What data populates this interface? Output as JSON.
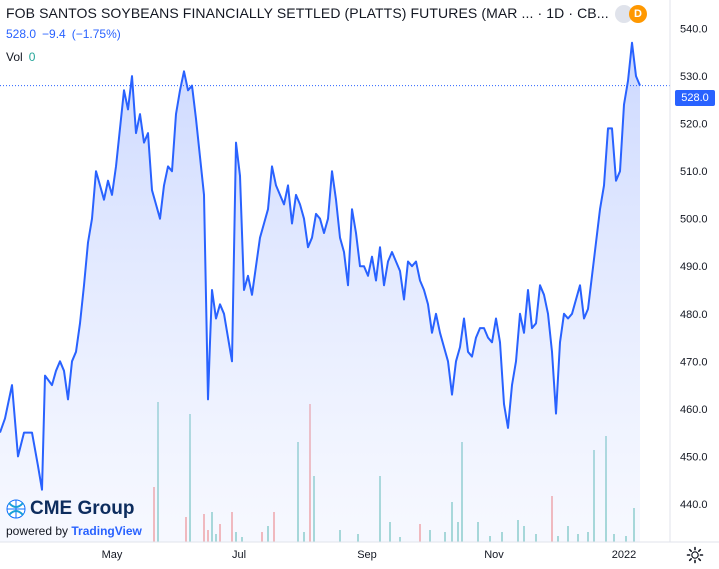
{
  "header": {
    "symbol_title": "FOB SANTOS SOYBEANS FINANCIALLY SETTLED (PLATTS) FUTURES (MAR ...",
    "interval": "1D",
    "exchange": "CB...",
    "badge_letter": "D"
  },
  "quote": {
    "last": "528.0",
    "change": "−9.4",
    "change_pct": "(−1.75%)"
  },
  "volume": {
    "label": "Vol",
    "value": "0"
  },
  "price_tag": "528.0",
  "branding": {
    "logo_text": "CME Group",
    "powered_by": "powered by",
    "provider": "TradingView"
  },
  "colors": {
    "line": "#2962ff",
    "area": "#dbe4ff",
    "vol_up": "#26a69a",
    "vol_down": "#ef5350"
  },
  "chart_data": {
    "type": "area",
    "x_tick_labels": [
      "May",
      "Jul",
      "Sep",
      "Nov",
      "2022"
    ],
    "y_tick_labels": [
      "440.0",
      "450.0",
      "460.0",
      "470.0",
      "480.0",
      "490.0",
      "500.0",
      "510.0",
      "520.0",
      "530.0",
      "540.0"
    ],
    "ylim": [
      432,
      546
    ],
    "last_price": 528.0,
    "price_x_range": [
      0,
      640
    ],
    "price_series": [
      [
        0,
        455
      ],
      [
        5,
        458
      ],
      [
        12,
        465
      ],
      [
        18,
        450
      ],
      [
        24,
        455
      ],
      [
        32,
        455
      ],
      [
        38,
        448
      ],
      [
        42,
        443
      ],
      [
        45,
        467
      ],
      [
        52,
        465
      ],
      [
        56,
        468
      ],
      [
        60,
        470
      ],
      [
        64,
        468
      ],
      [
        68,
        462
      ],
      [
        72,
        470
      ],
      [
        76,
        472
      ],
      [
        80,
        478
      ],
      [
        84,
        486
      ],
      [
        88,
        495
      ],
      [
        92,
        500
      ],
      [
        96,
        510
      ],
      [
        100,
        507
      ],
      [
        104,
        504
      ],
      [
        108,
        508
      ],
      [
        112,
        505
      ],
      [
        116,
        511
      ],
      [
        120,
        519
      ],
      [
        124,
        527
      ],
      [
        128,
        523
      ],
      [
        132,
        530
      ],
      [
        136,
        518
      ],
      [
        140,
        522
      ],
      [
        144,
        516
      ],
      [
        148,
        518
      ],
      [
        152,
        506
      ],
      [
        156,
        503
      ],
      [
        160,
        500
      ],
      [
        164,
        507
      ],
      [
        168,
        511
      ],
      [
        172,
        510
      ],
      [
        176,
        522
      ],
      [
        180,
        527
      ],
      [
        184,
        531
      ],
      [
        188,
        527
      ],
      [
        192,
        528
      ],
      [
        196,
        521
      ],
      [
        200,
        513
      ],
      [
        204,
        505
      ],
      [
        208,
        462
      ],
      [
        210,
        474
      ],
      [
        212,
        485
      ],
      [
        216,
        479
      ],
      [
        220,
        482
      ],
      [
        224,
        480
      ],
      [
        228,
        475
      ],
      [
        232,
        470
      ],
      [
        236,
        516
      ],
      [
        240,
        509
      ],
      [
        244,
        485
      ],
      [
        248,
        488
      ],
      [
        252,
        484
      ],
      [
        256,
        490
      ],
      [
        260,
        496
      ],
      [
        264,
        499
      ],
      [
        268,
        502
      ],
      [
        272,
        511
      ],
      [
        276,
        507
      ],
      [
        280,
        505
      ],
      [
        284,
        503
      ],
      [
        288,
        507
      ],
      [
        292,
        499
      ],
      [
        296,
        505
      ],
      [
        300,
        503
      ],
      [
        304,
        500
      ],
      [
        308,
        494
      ],
      [
        312,
        496
      ],
      [
        316,
        501
      ],
      [
        320,
        500
      ],
      [
        324,
        497
      ],
      [
        328,
        500
      ],
      [
        332,
        510
      ],
      [
        336,
        504
      ],
      [
        340,
        496
      ],
      [
        344,
        493
      ],
      [
        348,
        486
      ],
      [
        352,
        502
      ],
      [
        356,
        497
      ],
      [
        360,
        490
      ],
      [
        364,
        490
      ],
      [
        368,
        488
      ],
      [
        372,
        492
      ],
      [
        376,
        487
      ],
      [
        380,
        494
      ],
      [
        384,
        486
      ],
      [
        388,
        491
      ],
      [
        392,
        493
      ],
      [
        396,
        491
      ],
      [
        400,
        489
      ],
      [
        404,
        483
      ],
      [
        408,
        491
      ],
      [
        412,
        490
      ],
      [
        416,
        491
      ],
      [
        420,
        487
      ],
      [
        424,
        485
      ],
      [
        428,
        482
      ],
      [
        432,
        476
      ],
      [
        436,
        480
      ],
      [
        440,
        476
      ],
      [
        444,
        473
      ],
      [
        448,
        470
      ],
      [
        452,
        463
      ],
      [
        456,
        470
      ],
      [
        460,
        473
      ],
      [
        464,
        479
      ],
      [
        468,
        472
      ],
      [
        472,
        471
      ],
      [
        476,
        475
      ],
      [
        480,
        477
      ],
      [
        484,
        477
      ],
      [
        488,
        475
      ],
      [
        492,
        474
      ],
      [
        496,
        479
      ],
      [
        500,
        474
      ],
      [
        504,
        461
      ],
      [
        508,
        456
      ],
      [
        512,
        465
      ],
      [
        516,
        470
      ],
      [
        520,
        480
      ],
      [
        524,
        476
      ],
      [
        528,
        485
      ],
      [
        532,
        477
      ],
      [
        536,
        478
      ],
      [
        540,
        486
      ],
      [
        544,
        484
      ],
      [
        548,
        480
      ],
      [
        552,
        472
      ],
      [
        556,
        459
      ],
      [
        560,
        474
      ],
      [
        564,
        480
      ],
      [
        568,
        479
      ],
      [
        572,
        480
      ],
      [
        576,
        483
      ],
      [
        580,
        486
      ],
      [
        584,
        479
      ],
      [
        588,
        481
      ],
      [
        592,
        488
      ],
      [
        596,
        495
      ],
      [
        600,
        502
      ],
      [
        604,
        507
      ],
      [
        608,
        519
      ],
      [
        612,
        519
      ],
      [
        616,
        508
      ],
      [
        620,
        510
      ],
      [
        624,
        524
      ],
      [
        628,
        529
      ],
      [
        632,
        537
      ],
      [
        636,
        530
      ],
      [
        640,
        528
      ]
    ],
    "volume_series": [
      {
        "x": 154,
        "h": 55,
        "up": false
      },
      {
        "x": 158,
        "h": 140,
        "up": true
      },
      {
        "x": 186,
        "h": 25,
        "up": false
      },
      {
        "x": 190,
        "h": 128,
        "up": true
      },
      {
        "x": 204,
        "h": 28,
        "up": false
      },
      {
        "x": 208,
        "h": 12,
        "up": false
      },
      {
        "x": 212,
        "h": 30,
        "up": true
      },
      {
        "x": 216,
        "h": 8,
        "up": true
      },
      {
        "x": 220,
        "h": 18,
        "up": false
      },
      {
        "x": 232,
        "h": 30,
        "up": false
      },
      {
        "x": 236,
        "h": 10,
        "up": true
      },
      {
        "x": 242,
        "h": 5,
        "up": true
      },
      {
        "x": 262,
        "h": 10,
        "up": false
      },
      {
        "x": 268,
        "h": 16,
        "up": true
      },
      {
        "x": 274,
        "h": 30,
        "up": false
      },
      {
        "x": 298,
        "h": 100,
        "up": true
      },
      {
        "x": 304,
        "h": 10,
        "up": true
      },
      {
        "x": 310,
        "h": 138,
        "up": false
      },
      {
        "x": 314,
        "h": 66,
        "up": true
      },
      {
        "x": 340,
        "h": 12,
        "up": true
      },
      {
        "x": 358,
        "h": 8,
        "up": true
      },
      {
        "x": 380,
        "h": 66,
        "up": true
      },
      {
        "x": 390,
        "h": 20,
        "up": true
      },
      {
        "x": 400,
        "h": 5,
        "up": true
      },
      {
        "x": 420,
        "h": 18,
        "up": false
      },
      {
        "x": 430,
        "h": 12,
        "up": true
      },
      {
        "x": 445,
        "h": 10,
        "up": true
      },
      {
        "x": 452,
        "h": 40,
        "up": true
      },
      {
        "x": 458,
        "h": 20,
        "up": true
      },
      {
        "x": 462,
        "h": 100,
        "up": true
      },
      {
        "x": 478,
        "h": 20,
        "up": true
      },
      {
        "x": 490,
        "h": 6,
        "up": true
      },
      {
        "x": 502,
        "h": 10,
        "up": true
      },
      {
        "x": 518,
        "h": 22,
        "up": true
      },
      {
        "x": 524,
        "h": 16,
        "up": true
      },
      {
        "x": 536,
        "h": 8,
        "up": true
      },
      {
        "x": 552,
        "h": 46,
        "up": false
      },
      {
        "x": 558,
        "h": 6,
        "up": true
      },
      {
        "x": 568,
        "h": 16,
        "up": true
      },
      {
        "x": 578,
        "h": 8,
        "up": true
      },
      {
        "x": 588,
        "h": 10,
        "up": true
      },
      {
        "x": 594,
        "h": 92,
        "up": true
      },
      {
        "x": 606,
        "h": 106,
        "up": true
      },
      {
        "x": 614,
        "h": 8,
        "up": true
      },
      {
        "x": 626,
        "h": 6,
        "up": true
      },
      {
        "x": 634,
        "h": 34,
        "up": true
      }
    ]
  }
}
